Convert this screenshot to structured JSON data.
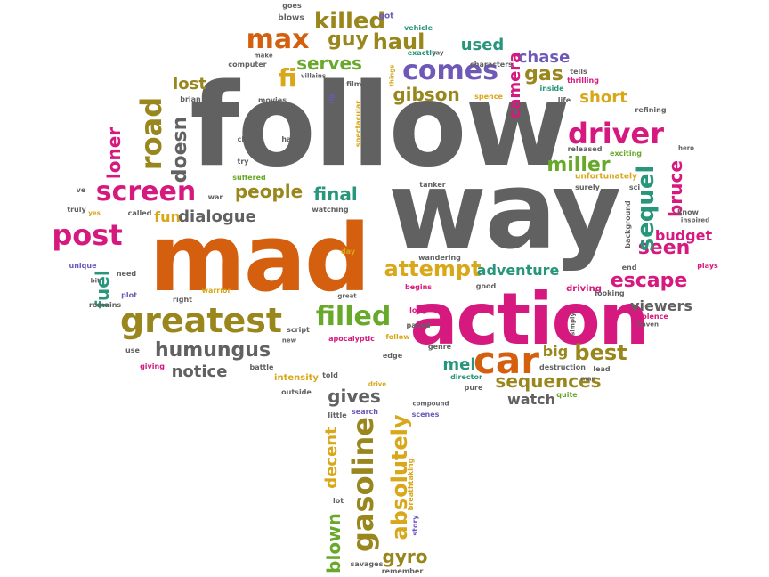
{
  "colors": {
    "gray": "#616161",
    "orange": "#d35f0f",
    "magenta": "#d6197e",
    "purple": "#6e59b8",
    "olive": "#99861d",
    "gold": "#d8a71a",
    "green": "#68a92b",
    "teal": "#27967a"
  },
  "words": [
    {
      "id": "follow",
      "text": "follow",
      "color": "gray"
    },
    {
      "id": "way",
      "text": "way",
      "color": "gray"
    },
    {
      "id": "mad",
      "text": "mad",
      "color": "orange"
    },
    {
      "id": "action",
      "text": "action",
      "color": "magenta"
    },
    {
      "id": "greatest",
      "text": "greatest",
      "color": "olive"
    },
    {
      "id": "humungus",
      "text": "humungus",
      "color": "gray"
    },
    {
      "id": "screen",
      "text": "screen",
      "color": "magenta"
    },
    {
      "id": "post",
      "text": "post",
      "color": "magenta"
    },
    {
      "id": "road",
      "text": "road",
      "color": "olive"
    },
    {
      "id": "loner",
      "text": "loner",
      "color": "magenta"
    },
    {
      "id": "doesn",
      "text": "doesn",
      "color": "gray"
    },
    {
      "id": "fuel",
      "text": "fuel",
      "color": "teal"
    },
    {
      "id": "fun",
      "text": "fun",
      "color": "gold"
    },
    {
      "id": "dialogue",
      "text": "dialogue",
      "color": "gray"
    },
    {
      "id": "people",
      "text": "people",
      "color": "olive"
    },
    {
      "id": "final",
      "text": "final",
      "color": "teal"
    },
    {
      "id": "filled",
      "text": "filled",
      "color": "green"
    },
    {
      "id": "attempt",
      "text": "attempt",
      "color": "gold"
    },
    {
      "id": "adventure",
      "text": "adventure",
      "color": "teal"
    },
    {
      "id": "escape",
      "text": "escape",
      "color": "magenta"
    },
    {
      "id": "seen",
      "text": "seen",
      "color": "magenta"
    },
    {
      "id": "budget",
      "text": "budget",
      "color": "magenta"
    },
    {
      "id": "bruce",
      "text": "bruce",
      "color": "magenta"
    },
    {
      "id": "sequel",
      "text": "sequel",
      "color": "teal"
    },
    {
      "id": "driver",
      "text": "driver",
      "color": "magenta"
    },
    {
      "id": "miller",
      "text": "miller",
      "color": "green"
    },
    {
      "id": "gas",
      "text": "gas",
      "color": "olive"
    },
    {
      "id": "short",
      "text": "short",
      "color": "gold"
    },
    {
      "id": "chase",
      "text": "chase",
      "color": "purple"
    },
    {
      "id": "camera",
      "text": "camera",
      "color": "magenta"
    },
    {
      "id": "used",
      "text": "used",
      "color": "teal"
    },
    {
      "id": "comes",
      "text": "comes",
      "color": "purple"
    },
    {
      "id": "gibson",
      "text": "gibson",
      "color": "olive"
    },
    {
      "id": "serves",
      "text": "serves",
      "color": "green"
    },
    {
      "id": "max",
      "text": "max",
      "color": "orange"
    },
    {
      "id": "guy",
      "text": "guy",
      "color": "olive"
    },
    {
      "id": "haul",
      "text": "haul",
      "color": "olive"
    },
    {
      "id": "killed",
      "text": "killed",
      "color": "olive"
    },
    {
      "id": "fi",
      "text": "fi",
      "color": "gold"
    },
    {
      "id": "lost",
      "text": "lost",
      "color": "olive"
    },
    {
      "id": "car",
      "text": "car",
      "color": "orange"
    },
    {
      "id": "mel",
      "text": "mel",
      "color": "teal"
    },
    {
      "id": "best",
      "text": "best",
      "color": "olive"
    },
    {
      "id": "big",
      "text": "big",
      "color": "olive"
    },
    {
      "id": "sequences",
      "text": "sequences",
      "color": "olive"
    },
    {
      "id": "viewers",
      "text": "viewers",
      "color": "gray"
    },
    {
      "id": "notice",
      "text": "notice",
      "color": "gray"
    },
    {
      "id": "gives",
      "text": "gives",
      "color": "gray"
    },
    {
      "id": "watch",
      "text": "watch",
      "color": "gray"
    },
    {
      "id": "gasoline",
      "text": "gasoline",
      "color": "olive"
    },
    {
      "id": "absolutely",
      "text": "absolutely",
      "color": "gold"
    },
    {
      "id": "decent",
      "text": "decent",
      "color": "gold"
    },
    {
      "id": "blown",
      "text": "blown",
      "color": "green"
    },
    {
      "id": "gyro",
      "text": "gyro",
      "color": "olive"
    },
    {
      "id": "intensity",
      "text": "intensity",
      "color": "gold"
    },
    {
      "id": "driving",
      "text": "driving",
      "color": "magenta"
    },
    {
      "id": "goes",
      "text": "goes",
      "color": "gray"
    },
    {
      "id": "blows",
      "text": "blows",
      "color": "gray"
    },
    {
      "id": "got",
      "text": "got",
      "color": "purple"
    },
    {
      "id": "vehicle",
      "text": "vehicle",
      "color": "teal"
    },
    {
      "id": "make",
      "text": "make",
      "color": "gray"
    },
    {
      "id": "computer",
      "text": "computer",
      "color": "gray"
    },
    {
      "id": "exactly",
      "text": "exactly",
      "color": "teal"
    },
    {
      "id": "say",
      "text": "say",
      "color": "gray"
    },
    {
      "id": "characters",
      "text": "characters",
      "color": "gray"
    },
    {
      "id": "tells",
      "text": "tells",
      "color": "gray"
    },
    {
      "id": "thrilling",
      "text": "thrilling",
      "color": "magenta"
    },
    {
      "id": "inside",
      "text": "inside",
      "color": "teal"
    },
    {
      "id": "villains",
      "text": "villains",
      "color": "gray"
    },
    {
      "id": "films",
      "text": "films",
      "color": "gray"
    },
    {
      "id": "things",
      "text": "things",
      "color": "gold"
    },
    {
      "id": "rig",
      "text": "rig",
      "color": "purple"
    },
    {
      "id": "spence",
      "text": "spence",
      "color": "gold"
    },
    {
      "id": "life",
      "text": "life",
      "color": "gray"
    },
    {
      "id": "refining",
      "text": "refining",
      "color": "gray"
    },
    {
      "id": "brian",
      "text": "brian",
      "color": "gray"
    },
    {
      "id": "movies",
      "text": "movies",
      "color": "gray"
    },
    {
      "id": "spectacular",
      "text": "spectacular",
      "color": "gold"
    },
    {
      "id": "prologue",
      "text": "prologue",
      "color": "gray"
    },
    {
      "id": "cliff",
      "text": "cliff",
      "color": "gray"
    },
    {
      "id": "half",
      "text": "half",
      "color": "gray"
    },
    {
      "id": "released",
      "text": "released",
      "color": "gray"
    },
    {
      "id": "exciting",
      "text": "exciting",
      "color": "green"
    },
    {
      "id": "hero",
      "text": "hero",
      "color": "gray"
    },
    {
      "id": "try",
      "text": "try",
      "color": "gray"
    },
    {
      "id": "unfortunately",
      "text": "unfortunately",
      "color": "gold"
    },
    {
      "id": "suffered",
      "text": "suffered",
      "color": "green"
    },
    {
      "id": "tanker",
      "text": "tanker",
      "color": "gray"
    },
    {
      "id": "surely",
      "text": "surely",
      "color": "gray"
    },
    {
      "id": "sci",
      "text": "sci",
      "color": "gray"
    },
    {
      "id": "ve",
      "text": "ve",
      "color": "gray"
    },
    {
      "id": "war",
      "text": "war",
      "color": "gray"
    },
    {
      "id": "truly",
      "text": "truly",
      "color": "gray"
    },
    {
      "id": "yes",
      "text": "yes",
      "color": "gold"
    },
    {
      "id": "called",
      "text": "called",
      "color": "gray"
    },
    {
      "id": "watching",
      "text": "watching",
      "color": "gray"
    },
    {
      "id": "background",
      "text": "background",
      "color": "gray"
    },
    {
      "id": "know",
      "text": "know",
      "color": "gray"
    },
    {
      "id": "inspired",
      "text": "inspired",
      "color": "gray"
    },
    {
      "id": "wandering",
      "text": "wandering",
      "color": "gray"
    },
    {
      "id": "day",
      "text": "day",
      "color": "gold"
    },
    {
      "id": "unique",
      "text": "unique",
      "color": "purple"
    },
    {
      "id": "need",
      "text": "need",
      "color": "gray"
    },
    {
      "id": "bit",
      "text": "bit",
      "color": "gray"
    },
    {
      "id": "plays",
      "text": "plays",
      "color": "magenta"
    },
    {
      "id": "end",
      "text": "end",
      "color": "gray"
    },
    {
      "id": "plot",
      "text": "plot",
      "color": "purple"
    },
    {
      "id": "right",
      "text": "right",
      "color": "gray"
    },
    {
      "id": "warrior",
      "text": "warrior",
      "color": "gold"
    },
    {
      "id": "good",
      "text": "good",
      "color": "gray"
    },
    {
      "id": "looking",
      "text": "looking",
      "color": "gray"
    },
    {
      "id": "remains",
      "text": "remains",
      "color": "gray"
    },
    {
      "id": "great",
      "text": "great",
      "color": "gray"
    },
    {
      "id": "begins",
      "text": "begins",
      "color": "magenta"
    },
    {
      "id": "long",
      "text": "long",
      "color": "magenta"
    },
    {
      "id": "paced",
      "text": "paced",
      "color": "gray"
    },
    {
      "id": "simply",
      "text": "simply",
      "color": "gray"
    },
    {
      "id": "violence",
      "text": "violence",
      "color": "magenta"
    },
    {
      "id": "haven",
      "text": "haven",
      "color": "gray"
    },
    {
      "id": "script",
      "text": "script",
      "color": "gray"
    },
    {
      "id": "apocalyptic",
      "text": "apocalyptic",
      "color": "magenta"
    },
    {
      "id": "follow_small",
      "text": "follow",
      "color": "gold"
    },
    {
      "id": "new",
      "text": "new",
      "color": "gray"
    },
    {
      "id": "use",
      "text": "use",
      "color": "gray"
    },
    {
      "id": "giving",
      "text": "giving",
      "color": "magenta"
    },
    {
      "id": "battle",
      "text": "battle",
      "color": "gray"
    },
    {
      "id": "genre",
      "text": "genre",
      "color": "gray"
    },
    {
      "id": "edge",
      "text": "edge",
      "color": "gray"
    },
    {
      "id": "destruction",
      "text": "destruction",
      "color": "gray"
    },
    {
      "id": "lead",
      "text": "lead",
      "color": "gray"
    },
    {
      "id": "director",
      "text": "director",
      "color": "teal"
    },
    {
      "id": "told",
      "text": "told",
      "color": "gray"
    },
    {
      "id": "man",
      "text": "man",
      "color": "gray"
    },
    {
      "id": "quite",
      "text": "quite",
      "color": "green"
    },
    {
      "id": "outside",
      "text": "outside",
      "color": "gray"
    },
    {
      "id": "drive",
      "text": "drive",
      "color": "gold"
    },
    {
      "id": "pure",
      "text": "pure",
      "color": "gray"
    },
    {
      "id": "little",
      "text": "little",
      "color": "gray"
    },
    {
      "id": "search",
      "text": "search",
      "color": "purple"
    },
    {
      "id": "compound",
      "text": "compound",
      "color": "gray"
    },
    {
      "id": "scenes",
      "text": "scenes",
      "color": "purple"
    },
    {
      "id": "breathtaking",
      "text": "breathtaking",
      "color": "gold"
    },
    {
      "id": "lot",
      "text": "lot",
      "color": "gray"
    },
    {
      "id": "story",
      "text": "story",
      "color": "purple"
    },
    {
      "id": "savages",
      "text": "savages",
      "color": "gray"
    },
    {
      "id": "remember",
      "text": "remember",
      "color": "gray"
    }
  ]
}
